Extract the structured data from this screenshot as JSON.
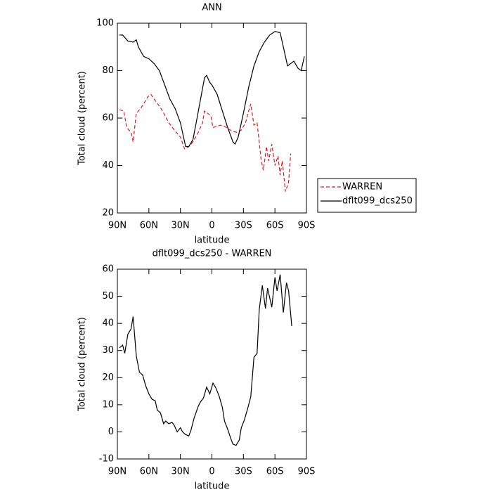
{
  "chart_data": [
    {
      "type": "line",
      "title": "ANN",
      "xlabel": "latitude",
      "ylabel": "Total cloud (percent)",
      "xlim": [
        90,
        -90
      ],
      "xticks": [
        {
          "value": 90,
          "label": "90N"
        },
        {
          "value": 60,
          "label": "60N"
        },
        {
          "value": 30,
          "label": "30N"
        },
        0,
        {
          "value": -30,
          "label": "30S"
        },
        {
          "value": -60,
          "label": "60S"
        },
        {
          "value": -90,
          "label": "90S"
        }
      ],
      "ylim": [
        20,
        100
      ],
      "yticks": [
        20,
        40,
        60,
        80,
        100
      ],
      "legend": "right",
      "series": [
        {
          "name": "WARREN",
          "color": "#e41a1c",
          "style": "dashed",
          "x": [
            88,
            84,
            81,
            77,
            75,
            72,
            68,
            65,
            61,
            58,
            55,
            50,
            47,
            41,
            34,
            30,
            26,
            22,
            18,
            13,
            9,
            7,
            4,
            1,
            -1,
            -8,
            -12,
            -19,
            -24,
            -28,
            -32,
            -35,
            -37,
            -40,
            -43,
            -47,
            -49,
            -52,
            -54,
            -57,
            -60,
            -63,
            -65,
            -67,
            -70,
            -73,
            -75
          ],
          "values": [
            63.5,
            63,
            56,
            54,
            50,
            62,
            64,
            66,
            69,
            70,
            68,
            65,
            63,
            58,
            54,
            52,
            47,
            48,
            50,
            54,
            58,
            63,
            62,
            61,
            56,
            57,
            56.5,
            54.5,
            54,
            55,
            58,
            63,
            66,
            57,
            58,
            42,
            38,
            48,
            42,
            49,
            40,
            44,
            36,
            42,
            29,
            33,
            45
          ]
        },
        {
          "name": "dflt099_dcs250",
          "color": "#000000",
          "style": "solid",
          "x": [
            88,
            85,
            80,
            75,
            72,
            70,
            65,
            60,
            55,
            50,
            45,
            40,
            35,
            30,
            25,
            22,
            18,
            15,
            10,
            7,
            5,
            2,
            0,
            -5,
            -10,
            -15,
            -20,
            -22,
            -25,
            -30,
            -35,
            -40,
            -45,
            -50,
            -55,
            -60,
            -65,
            -70,
            -72,
            -75,
            -78,
            -82,
            -85,
            -88
          ],
          "values": [
            95,
            95,
            92.5,
            92,
            93,
            90,
            86,
            85,
            83,
            80,
            74,
            68,
            64,
            58,
            48,
            48,
            51,
            58,
            70,
            77,
            78,
            75,
            74,
            70,
            63,
            56,
            50,
            49,
            52,
            62,
            73,
            82,
            88,
            92,
            95,
            96.5,
            96,
            86,
            82,
            83,
            84,
            81,
            80,
            86
          ]
        }
      ]
    },
    {
      "type": "line",
      "title": "dflt099_dcs250 - WARREN",
      "xlabel": "latitude",
      "ylabel": "Total cloud (percent)",
      "xlim": [
        90,
        -90
      ],
      "xticks": [
        {
          "value": 90,
          "label": "90N"
        },
        {
          "value": 60,
          "label": "60N"
        },
        {
          "value": 30,
          "label": "30N"
        },
        0,
        {
          "value": -30,
          "label": "30S"
        },
        {
          "value": -60,
          "label": "60S"
        },
        {
          "value": -90,
          "label": "90S"
        }
      ],
      "ylim": [
        -10,
        60
      ],
      "yticks": [
        -10,
        0,
        10,
        20,
        30,
        40,
        50,
        60
      ],
      "color": "#000000",
      "x": [
        88,
        85,
        83,
        80,
        77,
        75,
        72,
        69,
        66,
        63,
        60,
        57,
        54,
        52,
        49,
        46,
        44,
        41,
        38,
        36,
        33,
        30,
        28,
        25,
        22,
        20,
        17,
        13,
        11,
        8,
        5,
        2,
        -1,
        -4,
        -7,
        -10,
        -12,
        -15,
        -18,
        -20,
        -23,
        -26,
        -28,
        -31,
        -34,
        -37,
        -40,
        -43,
        -45,
        -48,
        -51,
        -53,
        -57,
        -60,
        -62,
        -65,
        -68,
        -71,
        -73,
        -76
      ],
      "values": [
        31,
        32,
        29,
        36,
        38,
        42.5,
        28,
        22,
        21,
        17,
        14,
        12,
        11.5,
        8,
        7,
        3,
        4,
        3,
        3.5,
        2.5,
        0,
        1.5,
        0,
        -1,
        -1.5,
        0.5,
        5,
        9.5,
        11,
        12.5,
        16.5,
        14,
        18,
        16,
        13,
        9,
        4,
        1,
        -2.5,
        -4.5,
        -5,
        -3,
        1.5,
        4.5,
        8.5,
        13,
        27.5,
        29,
        45,
        54,
        45.5,
        53,
        46,
        57,
        52,
        58,
        44,
        55,
        52,
        39
      ]
    }
  ]
}
